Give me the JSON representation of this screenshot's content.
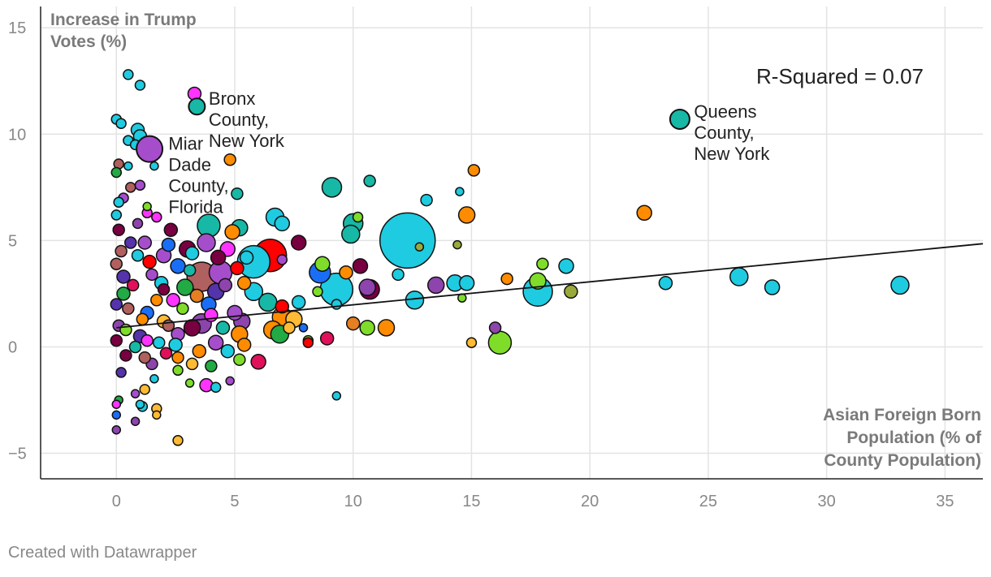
{
  "chart_data": {
    "type": "scatter",
    "ylabel": [
      "Increase in Trump",
      "Votes (%)"
    ],
    "xlabel": [
      "Asian Foreign Born",
      "Population (% of",
      "County Population)"
    ],
    "xlim": [
      -3.2,
      36.6
    ],
    "ylim": [
      -6.2,
      16
    ],
    "x_ticks": [
      0,
      5,
      10,
      15,
      20,
      25,
      30,
      35
    ],
    "y_ticks": [
      15,
      10,
      5,
      0,
      -5
    ],
    "x_tick_labels": [
      "0",
      "5",
      "10",
      "15",
      "20",
      "25",
      "30",
      "35"
    ],
    "y_tick_labels": [
      "15",
      "10",
      "5",
      "0",
      "−5"
    ],
    "grid": true,
    "r_squared_text": "R-Squared = 0.07",
    "trendline": {
      "x0": 0,
      "y0": 0.9,
      "x1": 36.6,
      "y1": 4.85
    },
    "annotations": [
      {
        "lines": [
          "Bronx",
          "County,",
          "New York"
        ],
        "x": 3.9,
        "y": 11.3
      },
      {
        "lines": [
          "Queens",
          "County,",
          "New York"
        ],
        "x": 24.4,
        "y": 10.7
      },
      {
        "lines": [
          "Miar",
          "Dade",
          "County,",
          "Florida"
        ],
        "x": 2.2,
        "y": 9.2
      }
    ],
    "labeled_points": [
      {
        "x": 3.4,
        "y": 11.3,
        "size": 10,
        "color": "#17b8a6"
      },
      {
        "x": 23.8,
        "y": 10.7,
        "size": 12,
        "color": "#17b8a6"
      },
      {
        "x": 1.4,
        "y": 9.3,
        "size": 16,
        "color": "#a64dcc"
      }
    ],
    "points": [
      {
        "x": 12.3,
        "y": 5.0,
        "size": 34,
        "color": "#1ecbe1"
      },
      {
        "x": 6.5,
        "y": 4.3,
        "size": 20,
        "color": "#ff0000"
      },
      {
        "x": 9.3,
        "y": 2.7,
        "size": 20,
        "color": "#1ecbe1"
      },
      {
        "x": 17.8,
        "y": 2.6,
        "size": 18,
        "color": "#1ecbe1"
      },
      {
        "x": 3.6,
        "y": 3.3,
        "size": 18,
        "color": "#b0605e"
      },
      {
        "x": 5.8,
        "y": 4.0,
        "size": 20,
        "color": "#1ecbe1"
      },
      {
        "x": 4.4,
        "y": 3.5,
        "size": 14,
        "color": "#a64dcc"
      },
      {
        "x": 0.5,
        "y": 12.8,
        "size": 6,
        "color": "#1ecbe1"
      },
      {
        "x": 1.0,
        "y": 12.3,
        "size": 6,
        "color": "#1ecbe1"
      },
      {
        "x": 3.3,
        "y": 11.9,
        "size": 8,
        "color": "#ff33ff"
      },
      {
        "x": 0.0,
        "y": 10.7,
        "size": 6,
        "color": "#1ecbe1"
      },
      {
        "x": 0.2,
        "y": 10.5,
        "size": 6,
        "color": "#1ecbe1"
      },
      {
        "x": 0.9,
        "y": 10.2,
        "size": 8,
        "color": "#1ecbe1"
      },
      {
        "x": 1.0,
        "y": 9.9,
        "size": 8,
        "color": "#1ecbe1"
      },
      {
        "x": 0.5,
        "y": 9.7,
        "size": 6,
        "color": "#1ecbe1"
      },
      {
        "x": 0.8,
        "y": 9.5,
        "size": 6,
        "color": "#1ecbe1"
      },
      {
        "x": 4.8,
        "y": 8.8,
        "size": 7,
        "color": "#ff8c00"
      },
      {
        "x": 0.1,
        "y": 8.6,
        "size": 6,
        "color": "#b0605e"
      },
      {
        "x": 0.5,
        "y": 8.5,
        "size": 5,
        "color": "#1ecbe1"
      },
      {
        "x": 1.6,
        "y": 8.5,
        "size": 5,
        "color": "#1ecbe1"
      },
      {
        "x": 0.0,
        "y": 8.2,
        "size": 6,
        "color": "#22aa44"
      },
      {
        "x": 15.1,
        "y": 8.3,
        "size": 7,
        "color": "#ff8c00"
      },
      {
        "x": 10.7,
        "y": 7.8,
        "size": 7,
        "color": "#17b8a6"
      },
      {
        "x": 9.1,
        "y": 7.5,
        "size": 12,
        "color": "#17b8a6"
      },
      {
        "x": 0.6,
        "y": 7.5,
        "size": 6,
        "color": "#b0605e"
      },
      {
        "x": 1.0,
        "y": 7.6,
        "size": 6,
        "color": "#a64dcc"
      },
      {
        "x": 14.5,
        "y": 7.3,
        "size": 5,
        "color": "#1ecbe1"
      },
      {
        "x": 5.1,
        "y": 7.2,
        "size": 7,
        "color": "#17b8a6"
      },
      {
        "x": 0.3,
        "y": 7.0,
        "size": 6,
        "color": "#a64dcc"
      },
      {
        "x": 13.1,
        "y": 6.9,
        "size": 7,
        "color": "#1ecbe1"
      },
      {
        "x": 0.1,
        "y": 6.8,
        "size": 6,
        "color": "#1ecbe1"
      },
      {
        "x": 1.3,
        "y": 6.6,
        "size": 5,
        "color": "#7fdd2a"
      },
      {
        "x": 1.3,
        "y": 6.3,
        "size": 6,
        "color": "#ff33ff"
      },
      {
        "x": 0.0,
        "y": 6.2,
        "size": 6,
        "color": "#1ecbe1"
      },
      {
        "x": 1.7,
        "y": 6.1,
        "size": 6,
        "color": "#ff33ff"
      },
      {
        "x": 10.2,
        "y": 6.1,
        "size": 6,
        "color": "#7fdd2a"
      },
      {
        "x": 6.7,
        "y": 6.1,
        "size": 11,
        "color": "#1ecbe1"
      },
      {
        "x": 3.9,
        "y": 5.7,
        "size": 14,
        "color": "#17b8a6"
      },
      {
        "x": 10.0,
        "y": 5.8,
        "size": 12,
        "color": "#17b8a6"
      },
      {
        "x": 7.0,
        "y": 5.8,
        "size": 9,
        "color": "#1ecbe1"
      },
      {
        "x": 14.8,
        "y": 6.2,
        "size": 10,
        "color": "#ff8c00"
      },
      {
        "x": 22.3,
        "y": 6.3,
        "size": 9,
        "color": "#ff8c00"
      },
      {
        "x": 2.3,
        "y": 5.5,
        "size": 8,
        "color": "#780040"
      },
      {
        "x": 5.2,
        "y": 5.6,
        "size": 10,
        "color": "#17b8a6"
      },
      {
        "x": 4.9,
        "y": 5.4,
        "size": 9,
        "color": "#ff8c00"
      },
      {
        "x": 9.9,
        "y": 5.3,
        "size": 11,
        "color": "#17b8a6"
      },
      {
        "x": 3.8,
        "y": 4.9,
        "size": 11,
        "color": "#a64dcc"
      },
      {
        "x": 12.8,
        "y": 4.7,
        "size": 5,
        "color": "#9aaa3a"
      },
      {
        "x": 14.4,
        "y": 4.8,
        "size": 5,
        "color": "#9aaa3a"
      },
      {
        "x": 7.7,
        "y": 4.9,
        "size": 9,
        "color": "#780040"
      },
      {
        "x": 1.2,
        "y": 4.9,
        "size": 8,
        "color": "#a64dcc"
      },
      {
        "x": 3.0,
        "y": 4.6,
        "size": 10,
        "color": "#780040"
      },
      {
        "x": 2.0,
        "y": 4.3,
        "size": 9,
        "color": "#a64dcc"
      },
      {
        "x": 4.7,
        "y": 4.6,
        "size": 9,
        "color": "#ff33ff"
      },
      {
        "x": 4.3,
        "y": 4.2,
        "size": 9,
        "color": "#780040"
      },
      {
        "x": 5.5,
        "y": 4.2,
        "size": 8,
        "color": "#1ecbe1"
      },
      {
        "x": 7.0,
        "y": 4.1,
        "size": 6,
        "color": "#a64dcc"
      },
      {
        "x": 8.7,
        "y": 3.9,
        "size": 9,
        "color": "#7fdd2a"
      },
      {
        "x": 10.3,
        "y": 3.8,
        "size": 9,
        "color": "#780040"
      },
      {
        "x": 18.0,
        "y": 3.9,
        "size": 7,
        "color": "#7fdd2a"
      },
      {
        "x": 19.0,
        "y": 3.8,
        "size": 9,
        "color": "#1ecbe1"
      },
      {
        "x": 8.6,
        "y": 3.5,
        "size": 13,
        "color": "#1a6ef5"
      },
      {
        "x": 9.7,
        "y": 3.5,
        "size": 8,
        "color": "#ff8c00"
      },
      {
        "x": 5.1,
        "y": 3.7,
        "size": 8,
        "color": "#ff0000"
      },
      {
        "x": 11.9,
        "y": 3.4,
        "size": 7,
        "color": "#1ecbe1"
      },
      {
        "x": 14.3,
        "y": 3.0,
        "size": 10,
        "color": "#1ecbe1"
      },
      {
        "x": 14.8,
        "y": 3.0,
        "size": 9,
        "color": "#1ecbe1"
      },
      {
        "x": 13.5,
        "y": 2.9,
        "size": 10,
        "color": "#8e44ad"
      },
      {
        "x": 16.5,
        "y": 3.2,
        "size": 7,
        "color": "#ff8c00"
      },
      {
        "x": 17.8,
        "y": 3.1,
        "size": 10,
        "color": "#7fdd2a"
      },
      {
        "x": 19.2,
        "y": 2.6,
        "size": 8,
        "color": "#9aaa3a"
      },
      {
        "x": 23.2,
        "y": 3.0,
        "size": 8,
        "color": "#1ecbe1"
      },
      {
        "x": 26.3,
        "y": 3.3,
        "size": 11,
        "color": "#1ecbe1"
      },
      {
        "x": 27.7,
        "y": 2.8,
        "size": 9,
        "color": "#1ecbe1"
      },
      {
        "x": 33.1,
        "y": 2.9,
        "size": 11,
        "color": "#1ecbe1"
      },
      {
        "x": 10.7,
        "y": 2.7,
        "size": 12,
        "color": "#780040"
      },
      {
        "x": 10.6,
        "y": 2.8,
        "size": 10,
        "color": "#8e44ad"
      },
      {
        "x": 12.6,
        "y": 2.2,
        "size": 11,
        "color": "#1ecbe1"
      },
      {
        "x": 5.8,
        "y": 2.6,
        "size": 11,
        "color": "#1ecbe1"
      },
      {
        "x": 6.4,
        "y": 2.1,
        "size": 11,
        "color": "#17b8a6"
      },
      {
        "x": 5.4,
        "y": 3.0,
        "size": 8,
        "color": "#ff8c00"
      },
      {
        "x": 8.5,
        "y": 2.6,
        "size": 6,
        "color": "#7fdd2a"
      },
      {
        "x": 7.0,
        "y": 1.9,
        "size": 8,
        "color": "#ff0000"
      },
      {
        "x": 7.7,
        "y": 2.1,
        "size": 8,
        "color": "#1ecbe1"
      },
      {
        "x": 9.3,
        "y": 2.0,
        "size": 6,
        "color": "#1ecbe1"
      },
      {
        "x": 14.6,
        "y": 2.3,
        "size": 5,
        "color": "#7fdd2a"
      },
      {
        "x": 7.0,
        "y": 1.4,
        "size": 12,
        "color": "#ff8c00"
      },
      {
        "x": 7.5,
        "y": 1.3,
        "size": 10,
        "color": "#ffbb33"
      },
      {
        "x": 5.0,
        "y": 1.6,
        "size": 9,
        "color": "#a64dcc"
      },
      {
        "x": 5.3,
        "y": 1.2,
        "size": 10,
        "color": "#8e44ad"
      },
      {
        "x": 3.9,
        "y": 2.0,
        "size": 9,
        "color": "#1a6ef5"
      },
      {
        "x": 4.2,
        "y": 2.6,
        "size": 10,
        "color": "#5533aa"
      },
      {
        "x": 3.6,
        "y": 1.1,
        "size": 12,
        "color": "#8e44ad"
      },
      {
        "x": 3.2,
        "y": 0.9,
        "size": 10,
        "color": "#780040"
      },
      {
        "x": 6.6,
        "y": 0.8,
        "size": 11,
        "color": "#ff8c00"
      },
      {
        "x": 6.9,
        "y": 0.6,
        "size": 11,
        "color": "#22aa44"
      },
      {
        "x": 7.3,
        "y": 0.9,
        "size": 7,
        "color": "#ffbb33"
      },
      {
        "x": 7.9,
        "y": 0.9,
        "size": 5,
        "color": "#1a6ef5"
      },
      {
        "x": 10.0,
        "y": 1.1,
        "size": 8,
        "color": "#e67e22"
      },
      {
        "x": 10.6,
        "y": 0.9,
        "size": 9,
        "color": "#7fdd2a"
      },
      {
        "x": 11.4,
        "y": 0.9,
        "size": 10,
        "color": "#ff8c00"
      },
      {
        "x": 8.1,
        "y": 0.3,
        "size": 6,
        "color": "#7fdd2a"
      },
      {
        "x": 8.1,
        "y": 0.2,
        "size": 6,
        "color": "#ff0000"
      },
      {
        "x": 8.9,
        "y": 0.4,
        "size": 8,
        "color": "#e0105a"
      },
      {
        "x": 16.2,
        "y": 0.2,
        "size": 14,
        "color": "#7fdd2a"
      },
      {
        "x": 16.0,
        "y": 0.9,
        "size": 7,
        "color": "#8e44ad"
      },
      {
        "x": 15.0,
        "y": 0.2,
        "size": 6,
        "color": "#ffbb33"
      },
      {
        "x": 5.2,
        "y": 0.6,
        "size": 10,
        "color": "#ff8c00"
      },
      {
        "x": 5.4,
        "y": 0.1,
        "size": 8,
        "color": "#ff8c00"
      },
      {
        "x": 4.2,
        "y": 0.2,
        "size": 9,
        "color": "#a64dcc"
      },
      {
        "x": 4.7,
        "y": -0.2,
        "size": 8,
        "color": "#1ecbe1"
      },
      {
        "x": 5.2,
        "y": -0.6,
        "size": 7,
        "color": "#7fdd2a"
      },
      {
        "x": 6.0,
        "y": -0.7,
        "size": 9,
        "color": "#e0105a"
      },
      {
        "x": 4.0,
        "y": -0.9,
        "size": 7,
        "color": "#22aa44"
      },
      {
        "x": 3.2,
        "y": -0.8,
        "size": 7,
        "color": "#ffbb33"
      },
      {
        "x": 2.6,
        "y": -0.5,
        "size": 7,
        "color": "#ff8c00"
      },
      {
        "x": 2.6,
        "y": -1.1,
        "size": 6,
        "color": "#7fdd2a"
      },
      {
        "x": 3.1,
        "y": -1.7,
        "size": 5,
        "color": "#7fdd2a"
      },
      {
        "x": 3.8,
        "y": -1.8,
        "size": 8,
        "color": "#ff33ff"
      },
      {
        "x": 4.2,
        "y": -1.9,
        "size": 6,
        "color": "#1ecbe1"
      },
      {
        "x": 4.8,
        "y": -1.6,
        "size": 5,
        "color": "#a64dcc"
      },
      {
        "x": 1.6,
        "y": -1.5,
        "size": 5,
        "color": "#1ecbe1"
      },
      {
        "x": 1.2,
        "y": -2.0,
        "size": 6,
        "color": "#ffbb33"
      },
      {
        "x": 0.8,
        "y": -2.2,
        "size": 5,
        "color": "#a64dcc"
      },
      {
        "x": 0.1,
        "y": -2.5,
        "size": 5,
        "color": "#22aa44"
      },
      {
        "x": 1.1,
        "y": -2.8,
        "size": 6,
        "color": "#1ecbe1"
      },
      {
        "x": 1.0,
        "y": -2.7,
        "size": 5,
        "color": "#1ecbe1"
      },
      {
        "x": 1.7,
        "y": -2.9,
        "size": 6,
        "color": "#ffbb33"
      },
      {
        "x": 1.7,
        "y": -3.2,
        "size": 5,
        "color": "#ffbb33"
      },
      {
        "x": 0.0,
        "y": -2.7,
        "size": 5,
        "color": "#ff33ff"
      },
      {
        "x": 0.0,
        "y": -3.2,
        "size": 5,
        "color": "#1a6ef5"
      },
      {
        "x": 0.8,
        "y": -3.5,
        "size": 5,
        "color": "#8e44ad"
      },
      {
        "x": 0.0,
        "y": -3.9,
        "size": 5,
        "color": "#8e44ad"
      },
      {
        "x": 2.6,
        "y": -4.4,
        "size": 6,
        "color": "#ffbb33"
      },
      {
        "x": 9.3,
        "y": -2.3,
        "size": 5,
        "color": "#1ecbe1"
      },
      {
        "x": 2.9,
        "y": 2.8,
        "size": 10,
        "color": "#22aa44"
      },
      {
        "x": 2.4,
        "y": 2.2,
        "size": 8,
        "color": "#ff33ff"
      },
      {
        "x": 1.3,
        "y": 1.6,
        "size": 8,
        "color": "#1a6ef5"
      },
      {
        "x": 2.0,
        "y": 1.2,
        "size": 8,
        "color": "#ffbb33"
      },
      {
        "x": 2.6,
        "y": 0.6,
        "size": 8,
        "color": "#a64dcc"
      },
      {
        "x": 1.8,
        "y": 0.2,
        "size": 7,
        "color": "#1ecbe1"
      },
      {
        "x": 1.0,
        "y": 0.5,
        "size": 8,
        "color": "#5533aa"
      },
      {
        "x": 0.5,
        "y": 1.8,
        "size": 7,
        "color": "#b0605e"
      },
      {
        "x": 0.3,
        "y": 3.3,
        "size": 8,
        "color": "#5533aa"
      },
      {
        "x": 0.2,
        "y": 4.5,
        "size": 7,
        "color": "#b0605e"
      },
      {
        "x": 0.1,
        "y": 5.5,
        "size": 7,
        "color": "#780040"
      },
      {
        "x": 0.3,
        "y": 2.5,
        "size": 8,
        "color": "#22aa44"
      },
      {
        "x": 0.1,
        "y": 1.0,
        "size": 7,
        "color": "#8e44ad"
      },
      {
        "x": 0.4,
        "y": -0.4,
        "size": 7,
        "color": "#780040"
      },
      {
        "x": 0.2,
        "y": -1.2,
        "size": 6,
        "color": "#5533aa"
      },
      {
        "x": 1.5,
        "y": -0.8,
        "size": 7,
        "color": "#8e44ad"
      },
      {
        "x": 2.1,
        "y": -0.3,
        "size": 7,
        "color": "#e0105a"
      },
      {
        "x": 1.9,
        "y": 3.0,
        "size": 8,
        "color": "#1ecbe1"
      },
      {
        "x": 1.4,
        "y": 4.0,
        "size": 8,
        "color": "#ff0000"
      },
      {
        "x": 2.6,
        "y": 3.8,
        "size": 9,
        "color": "#1a6ef5"
      },
      {
        "x": 2.8,
        "y": 1.8,
        "size": 7,
        "color": "#7fdd2a"
      },
      {
        "x": 3.4,
        "y": 2.4,
        "size": 8,
        "color": "#e67e22"
      },
      {
        "x": 3.1,
        "y": 3.6,
        "size": 7,
        "color": "#17b8a6"
      },
      {
        "x": 0.7,
        "y": 2.9,
        "size": 7,
        "color": "#e0105a"
      },
      {
        "x": 0.6,
        "y": 4.9,
        "size": 7,
        "color": "#5533aa"
      },
      {
        "x": 0.9,
        "y": 5.8,
        "size": 6,
        "color": "#8e44ad"
      },
      {
        "x": 1.1,
        "y": 1.3,
        "size": 7,
        "color": "#ff8c00"
      },
      {
        "x": 0.8,
        "y": 0.0,
        "size": 7,
        "color": "#17b8a6"
      },
      {
        "x": 1.2,
        "y": -0.5,
        "size": 7,
        "color": "#b0605e"
      },
      {
        "x": 0.0,
        "y": 3.9,
        "size": 7,
        "color": "#b0605e"
      },
      {
        "x": 0.0,
        "y": 2.0,
        "size": 7,
        "color": "#5533aa"
      },
      {
        "x": 0.0,
        "y": 0.3,
        "size": 7,
        "color": "#780040"
      },
      {
        "x": 2.2,
        "y": 4.8,
        "size": 8,
        "color": "#1a6ef5"
      },
      {
        "x": 2.5,
        "y": 0.1,
        "size": 8,
        "color": "#1ecbe1"
      },
      {
        "x": 3.5,
        "y": -0.2,
        "size": 8,
        "color": "#ff8c00"
      },
      {
        "x": 4.5,
        "y": 0.9,
        "size": 8,
        "color": "#17b8a6"
      },
      {
        "x": 4.0,
        "y": 1.5,
        "size": 8,
        "color": "#ff33ff"
      },
      {
        "x": 1.7,
        "y": 2.2,
        "size": 7,
        "color": "#ff8c00"
      },
      {
        "x": 1.5,
        "y": 3.4,
        "size": 7,
        "color": "#a64dcc"
      },
      {
        "x": 0.9,
        "y": 4.3,
        "size": 7,
        "color": "#1ecbe1"
      },
      {
        "x": 0.4,
        "y": 0.8,
        "size": 7,
        "color": "#7fdd2a"
      },
      {
        "x": 1.3,
        "y": 0.3,
        "size": 7,
        "color": "#ff33ff"
      },
      {
        "x": 2.2,
        "y": 1.0,
        "size": 7,
        "color": "#b0605e"
      },
      {
        "x": 2.0,
        "y": 2.7,
        "size": 7,
        "color": "#780040"
      },
      {
        "x": 3.2,
        "y": 4.4,
        "size": 8,
        "color": "#1ecbe1"
      },
      {
        "x": 4.6,
        "y": 2.9,
        "size": 8,
        "color": "#8e44ad"
      }
    ]
  },
  "credit": "Created with Datawrapper"
}
